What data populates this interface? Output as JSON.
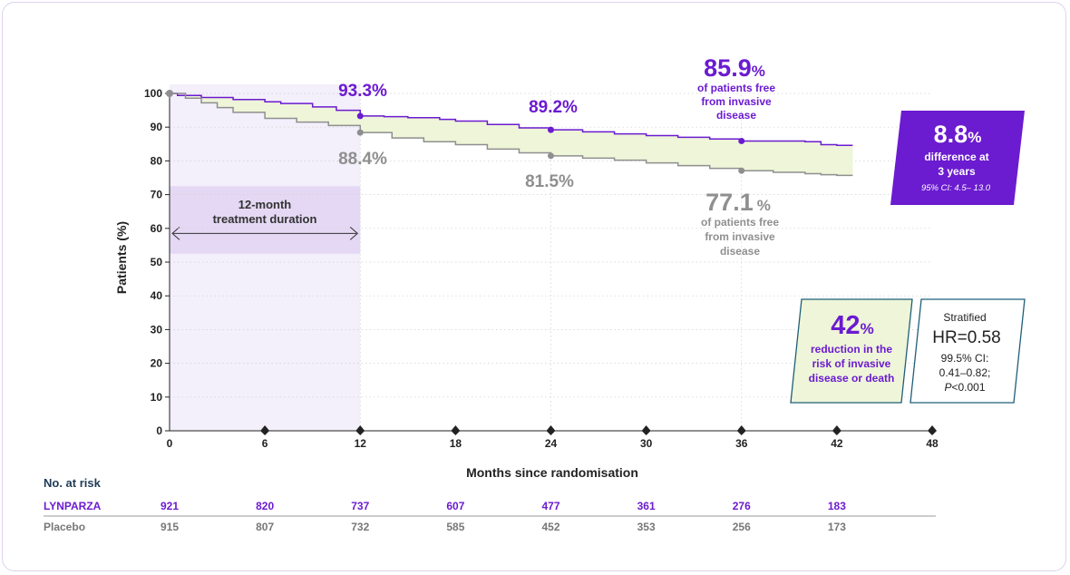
{
  "chart_data": {
    "type": "line",
    "xlabel": "Months since randomisation",
    "ylabel": "Patients (%)",
    "xlim": [
      0,
      48
    ],
    "ylim": [
      0,
      100
    ],
    "x_ticks": [
      0,
      6,
      12,
      18,
      24,
      30,
      36,
      42,
      48
    ],
    "y_ticks": [
      0,
      10,
      20,
      30,
      40,
      50,
      60,
      70,
      80,
      90,
      100
    ],
    "grid": "horizontal-dotted",
    "series": [
      {
        "name": "LYNPARZA",
        "color": "#6b1bd0",
        "x": [
          0,
          0.5,
          2,
          4,
          6,
          7,
          9,
          10.5,
          12,
          13.5,
          15,
          17,
          18,
          20,
          22,
          24,
          26,
          28,
          30,
          32,
          34,
          36,
          38,
          40,
          41,
          42,
          43
        ],
        "y": [
          100,
          99.4,
          98.8,
          98.2,
          97.5,
          97.0,
          96.0,
          95.0,
          93.3,
          93.1,
          92.8,
          92.3,
          91.8,
          90.8,
          89.8,
          89.2,
          88.6,
          88.0,
          87.5,
          87.0,
          86.5,
          85.9,
          85.9,
          85.7,
          84.8,
          84.6,
          84.6
        ]
      },
      {
        "name": "Placebo",
        "color": "#8f8f8f",
        "x": [
          0,
          1,
          2,
          3,
          4,
          6,
          8,
          10,
          12,
          14,
          16,
          18,
          20,
          22,
          24,
          26,
          28,
          30,
          32,
          34,
          36,
          38,
          40,
          41,
          42,
          43
        ],
        "y": [
          100,
          98.6,
          97.2,
          95.8,
          94.4,
          92.6,
          91.5,
          90.5,
          88.4,
          86.8,
          85.7,
          84.8,
          83.5,
          82.4,
          81.5,
          80.8,
          80.2,
          79.4,
          78.6,
          77.8,
          77.1,
          76.6,
          76.2,
          75.9,
          75.7,
          75.7
        ]
      }
    ],
    "markers": {
      "lynparza": [
        {
          "x": 12,
          "y": 93.3
        },
        {
          "x": 24,
          "y": 89.2
        },
        {
          "x": 36,
          "y": 85.9
        }
      ],
      "placebo": [
        {
          "x": 12,
          "y": 88.4
        },
        {
          "x": 24,
          "y": 81.5
        },
        {
          "x": 36,
          "y": 77.1
        }
      ]
    },
    "value_labels": {
      "lynparza_12": "93.3%",
      "lynparza_24": "89.2%",
      "placebo_12": "88.4%",
      "placebo_24": "81.5%"
    },
    "shaded_band": {
      "color": "#eef5d8"
    },
    "treatment_window": {
      "from": 0,
      "to": 12,
      "label_line1": "12-month",
      "label_line2": "treatment duration"
    },
    "callout_lynparza_36": {
      "value": "85.9",
      "unit": "%",
      "line1": "of patients free",
      "line2": "from invasive",
      "line3": "disease"
    },
    "callout_placebo_36": {
      "value": "77.1",
      "unit": "%",
      "line1": "of patients free",
      "line2": "from invasive",
      "line3": "disease"
    },
    "difference_box": {
      "value": "8.8",
      "unit": "%",
      "line1": "difference at",
      "line2": "3 years",
      "ci": "95% CI: 4.5– 13.0",
      "color": "#6b1bd0"
    },
    "reduction_box": {
      "value": "42",
      "unit": "%",
      "line1": "reduction in the",
      "line2": "risk of invasive",
      "line3": "disease or death"
    },
    "hr_box": {
      "line1": "Stratified",
      "hr": "HR=0.58",
      "ci1": "99.5% CI:",
      "ci2": "0.41–0.82;",
      "p_letter": "P",
      "p_value": "<0.001"
    },
    "risk_table": {
      "title": "No. at risk",
      "rows": [
        {
          "label": "LYNPARZA",
          "values": [
            921,
            820,
            737,
            607,
            477,
            361,
            276,
            183
          ]
        },
        {
          "label": "Placebo",
          "values": [
            915,
            807,
            732,
            585,
            452,
            353,
            256,
            173
          ]
        }
      ]
    }
  }
}
